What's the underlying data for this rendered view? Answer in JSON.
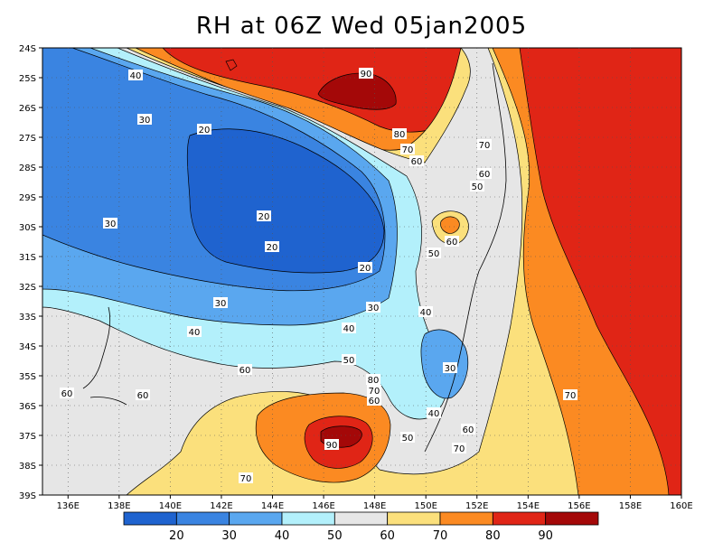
{
  "title": "RH at 06Z Wed 05jan2005",
  "x_ticks": [
    "136E",
    "138E",
    "140E",
    "142E",
    "144E",
    "146E",
    "148E",
    "150E",
    "152E",
    "154E",
    "156E",
    "158E",
    "160E"
  ],
  "y_ticks": [
    "24S",
    "25S",
    "26S",
    "27S",
    "28S",
    "29S",
    "30S",
    "31S",
    "32S",
    "33S",
    "34S",
    "35S",
    "36S",
    "37S",
    "38S",
    "39S"
  ],
  "contour_labels": [
    "40",
    "30",
    "20",
    "20",
    "20",
    "20",
    "30",
    "30",
    "30",
    "40",
    "40",
    "50",
    "60",
    "60",
    "60",
    "70",
    "80",
    "90",
    "80",
    "70",
    "60",
    "50",
    "70",
    "60",
    "60",
    "50",
    "40",
    "30",
    "40",
    "50",
    "60",
    "70",
    "70",
    "80",
    "90",
    "70",
    "60"
  ],
  "colorbar": {
    "labels": [
      "20",
      "30",
      "40",
      "50",
      "60",
      "70",
      "80",
      "90"
    ],
    "colors": [
      "#1f63cf",
      "#3a84e1",
      "#5aa7ef",
      "#b3f0fb",
      "#e6e6e6",
      "#fbe07c",
      "#fb8a22",
      "#e02516",
      "#a40808"
    ]
  },
  "chart_data": {
    "type": "heatmap",
    "title": "RH at 06Z Wed 05jan2005",
    "variable": "RH",
    "x_range": [
      135,
      160
    ],
    "y_range": [
      -39,
      -24
    ],
    "contour_levels": [
      20,
      30,
      40,
      50,
      60,
      70,
      80,
      90
    ],
    "grid": true
  }
}
